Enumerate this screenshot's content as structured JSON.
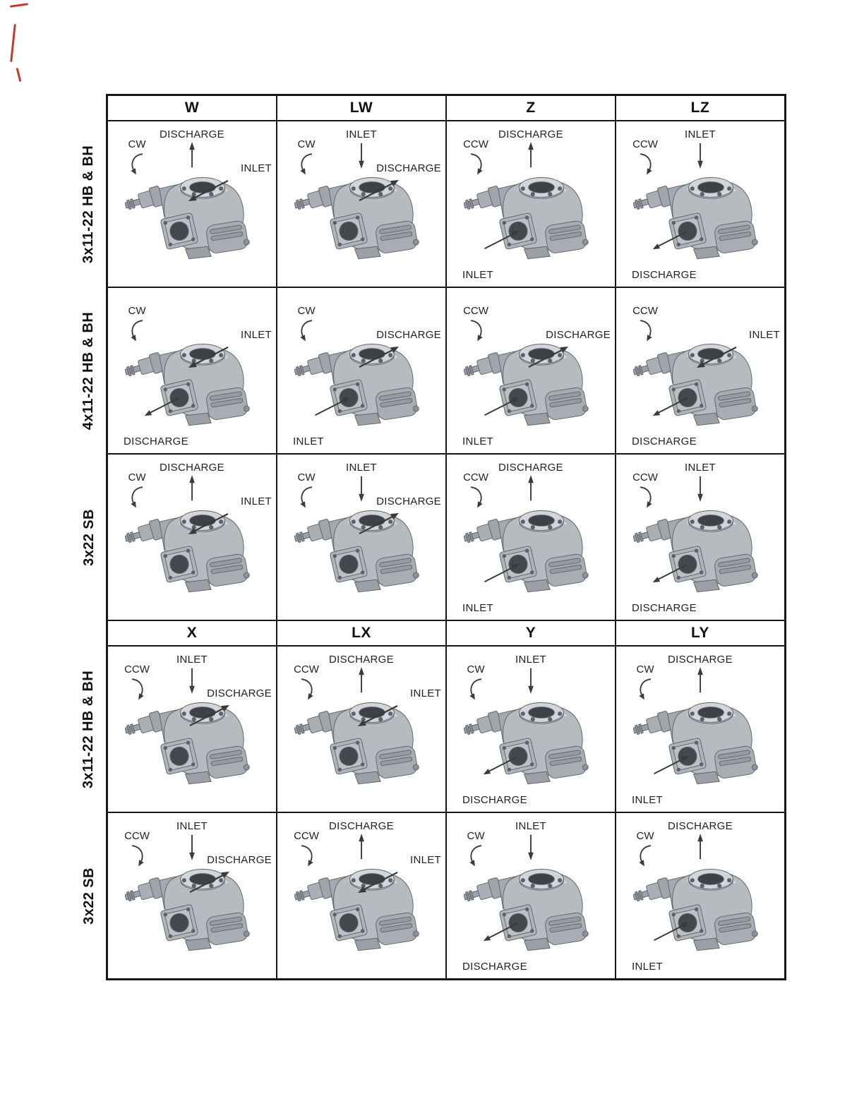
{
  "colors": {
    "grid_border": "#161616",
    "annotation_text": "#222222",
    "arrow": "#3a3a3a",
    "pump_body": "#b6bbc0",
    "scan_artifact": "#c6392c"
  },
  "sections": [
    {
      "columns": [
        "W",
        "LW",
        "Z",
        "LZ"
      ],
      "rows": [
        {
          "label": "3x11-22 HB & BH",
          "cells": [
            {
              "rotation": "CW",
              "ports": [
                {
                  "name": "DISCHARGE",
                  "pos": "top"
                },
                {
                  "name": "INLET",
                  "pos": "right"
                }
              ]
            },
            {
              "rotation": "CW",
              "ports": [
                {
                  "name": "INLET",
                  "pos": "top"
                },
                {
                  "name": "DISCHARGE",
                  "pos": "right"
                }
              ]
            },
            {
              "rotation": "CCW",
              "ports": [
                {
                  "name": "DISCHARGE",
                  "pos": "top"
                },
                {
                  "name": "INLET",
                  "pos": "bottom-left"
                }
              ]
            },
            {
              "rotation": "CCW",
              "ports": [
                {
                  "name": "INLET",
                  "pos": "top"
                },
                {
                  "name": "DISCHARGE",
                  "pos": "bottom-left"
                }
              ]
            }
          ]
        },
        {
          "label": "4x11-22 HB & BH",
          "cells": [
            {
              "rotation": "CW",
              "ports": [
                {
                  "name": "INLET",
                  "pos": "right"
                },
                {
                  "name": "DISCHARGE",
                  "pos": "bottom-left"
                }
              ]
            },
            {
              "rotation": "CW",
              "ports": [
                {
                  "name": "DISCHARGE",
                  "pos": "right"
                },
                {
                  "name": "INLET",
                  "pos": "bottom-left"
                }
              ]
            },
            {
              "rotation": "CCW",
              "ports": [
                {
                  "name": "DISCHARGE",
                  "pos": "right"
                },
                {
                  "name": "INLET",
                  "pos": "bottom-left"
                }
              ]
            },
            {
              "rotation": "CCW",
              "ports": [
                {
                  "name": "INLET",
                  "pos": "right"
                },
                {
                  "name": "DISCHARGE",
                  "pos": "bottom-left"
                }
              ]
            }
          ]
        },
        {
          "label": "3x22 SB",
          "cells": [
            {
              "rotation": "CW",
              "ports": [
                {
                  "name": "DISCHARGE",
                  "pos": "top"
                },
                {
                  "name": "INLET",
                  "pos": "right"
                }
              ]
            },
            {
              "rotation": "CW",
              "ports": [
                {
                  "name": "INLET",
                  "pos": "top"
                },
                {
                  "name": "DISCHARGE",
                  "pos": "right"
                }
              ]
            },
            {
              "rotation": "CCW",
              "ports": [
                {
                  "name": "DISCHARGE",
                  "pos": "top"
                },
                {
                  "name": "INLET",
                  "pos": "bottom-left"
                }
              ]
            },
            {
              "rotation": "CCW",
              "ports": [
                {
                  "name": "INLET",
                  "pos": "top"
                },
                {
                  "name": "DISCHARGE",
                  "pos": "bottom-left"
                }
              ]
            }
          ]
        }
      ]
    },
    {
      "columns": [
        "X",
        "LX",
        "Y",
        "LY"
      ],
      "rows": [
        {
          "label": "3x11-22 HB & BH",
          "cells": [
            {
              "rotation": "CCW",
              "ports": [
                {
                  "name": "INLET",
                  "pos": "top"
                },
                {
                  "name": "DISCHARGE",
                  "pos": "right"
                }
              ]
            },
            {
              "rotation": "CCW",
              "ports": [
                {
                  "name": "DISCHARGE",
                  "pos": "top"
                },
                {
                  "name": "INLET",
                  "pos": "right"
                }
              ]
            },
            {
              "rotation": "CW",
              "ports": [
                {
                  "name": "INLET",
                  "pos": "top"
                },
                {
                  "name": "DISCHARGE",
                  "pos": "bottom-left"
                }
              ]
            },
            {
              "rotation": "CW",
              "ports": [
                {
                  "name": "DISCHARGE",
                  "pos": "top"
                },
                {
                  "name": "INLET",
                  "pos": "bottom-left"
                }
              ]
            }
          ]
        },
        {
          "label": "3x22 SB",
          "cells": [
            {
              "rotation": "CCW",
              "ports": [
                {
                  "name": "INLET",
                  "pos": "top"
                },
                {
                  "name": "DISCHARGE",
                  "pos": "right"
                }
              ]
            },
            {
              "rotation": "CCW",
              "ports": [
                {
                  "name": "DISCHARGE",
                  "pos": "top"
                },
                {
                  "name": "INLET",
                  "pos": "right"
                }
              ]
            },
            {
              "rotation": "CW",
              "ports": [
                {
                  "name": "INLET",
                  "pos": "top"
                },
                {
                  "name": "DISCHARGE",
                  "pos": "bottom-left"
                }
              ]
            },
            {
              "rotation": "CW",
              "ports": [
                {
                  "name": "DISCHARGE",
                  "pos": "top"
                },
                {
                  "name": "INLET",
                  "pos": "bottom-left"
                }
              ]
            }
          ]
        }
      ]
    }
  ]
}
